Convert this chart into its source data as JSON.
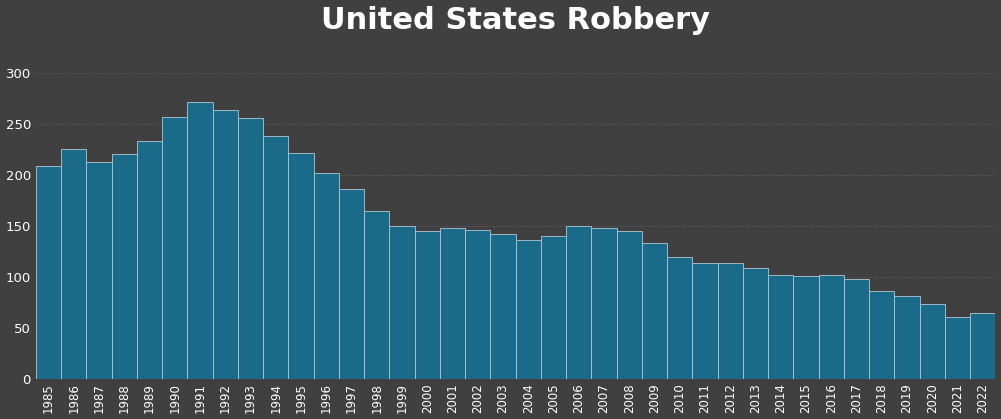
{
  "title": "United States Robbery",
  "years": [
    1985,
    1986,
    1987,
    1988,
    1989,
    1990,
    1991,
    1992,
    1993,
    1994,
    1995,
    1996,
    1997,
    1998,
    1999,
    2000,
    2001,
    2002,
    2003,
    2004,
    2005,
    2006,
    2007,
    2008,
    2009,
    2010,
    2011,
    2012,
    2013,
    2014,
    2015,
    2016,
    2017,
    2018,
    2019,
    2020,
    2021,
    2022
  ],
  "values": [
    209,
    225,
    213,
    220,
    233,
    257,
    272,
    264,
    256,
    238,
    221,
    202,
    186,
    165,
    150,
    145,
    148,
    146,
    142,
    136,
    140,
    150,
    148,
    145,
    133,
    119,
    113,
    113,
    109,
    102,
    101,
    102,
    98,
    86,
    81,
    73,
    60,
    64
  ],
  "bar_color": "#1a6b8a",
  "background_color": "#404040",
  "plot_bg_color": "#404040",
  "text_color": "#ffffff",
  "grid_color": "#808080",
  "ylim": [
    0,
    330
  ],
  "yticks": [
    0,
    50,
    100,
    150,
    200,
    250,
    300
  ],
  "ytick_labels": [
    "0",
    "50",
    "100",
    "150",
    "200",
    "250",
    "300"
  ],
  "title_fontsize": 22,
  "tick_fontsize": 8.5,
  "bar_edge_color": "#b0c8d4",
  "bar_edge_width": 0.6,
  "bar_width": 1.0
}
